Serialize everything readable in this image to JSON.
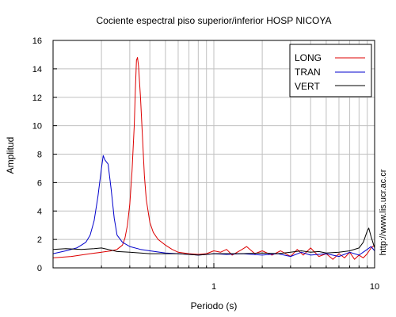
{
  "chart_data": {
    "type": "line",
    "title": "Cociente espectral piso superior/inferior  HOSP NICOYA",
    "xlabel": "Periodo (s)",
    "ylabel": "Amplitud",
    "xscale": "log",
    "xlim": [
      0.1,
      10
    ],
    "ylim": [
      0,
      16
    ],
    "xticks": [
      1,
      10
    ],
    "yticks": [
      0,
      2,
      4,
      6,
      8,
      10,
      12,
      14,
      16
    ],
    "grid": true,
    "legend_position": "top-right",
    "series": [
      {
        "name": "LONG",
        "color": "#dd0000",
        "points": [
          [
            0.1,
            0.7
          ],
          [
            0.13,
            0.8
          ],
          [
            0.17,
            1.0
          ],
          [
            0.2,
            1.1
          ],
          [
            0.23,
            1.2
          ],
          [
            0.25,
            1.3
          ],
          [
            0.27,
            1.6
          ],
          [
            0.28,
            2.1
          ],
          [
            0.29,
            3.0
          ],
          [
            0.3,
            4.5
          ],
          [
            0.31,
            6.8
          ],
          [
            0.32,
            10.0
          ],
          [
            0.325,
            12.5
          ],
          [
            0.33,
            14.6
          ],
          [
            0.335,
            14.8
          ],
          [
            0.34,
            14.2
          ],
          [
            0.35,
            12.0
          ],
          [
            0.36,
            9.2
          ],
          [
            0.37,
            6.5
          ],
          [
            0.38,
            4.8
          ],
          [
            0.4,
            3.2
          ],
          [
            0.42,
            2.5
          ],
          [
            0.45,
            2.0
          ],
          [
            0.5,
            1.6
          ],
          [
            0.55,
            1.3
          ],
          [
            0.6,
            1.1
          ],
          [
            0.7,
            1.0
          ],
          [
            0.8,
            0.95
          ],
          [
            0.9,
            1.0
          ],
          [
            1.0,
            1.2
          ],
          [
            1.1,
            1.1
          ],
          [
            1.2,
            1.3
          ],
          [
            1.3,
            0.9
          ],
          [
            1.5,
            1.3
          ],
          [
            1.6,
            1.5
          ],
          [
            1.8,
            1.0
          ],
          [
            2.0,
            1.2
          ],
          [
            2.3,
            0.9
          ],
          [
            2.6,
            1.2
          ],
          [
            3.0,
            0.8
          ],
          [
            3.3,
            1.3
          ],
          [
            3.6,
            0.9
          ],
          [
            4.0,
            1.4
          ],
          [
            4.5,
            0.8
          ],
          [
            5.0,
            1.0
          ],
          [
            5.5,
            0.6
          ],
          [
            6.0,
            1.0
          ],
          [
            6.5,
            0.7
          ],
          [
            7.0,
            1.1
          ],
          [
            7.5,
            0.6
          ],
          [
            8.0,
            0.9
          ],
          [
            8.5,
            0.7
          ],
          [
            9.0,
            1.0
          ],
          [
            9.5,
            1.4
          ],
          [
            10.0,
            1.6
          ]
        ]
      },
      {
        "name": "TRAN",
        "color": "#0000cc",
        "points": [
          [
            0.1,
            1.0
          ],
          [
            0.12,
            1.2
          ],
          [
            0.14,
            1.4
          ],
          [
            0.15,
            1.6
          ],
          [
            0.16,
            1.8
          ],
          [
            0.17,
            2.3
          ],
          [
            0.18,
            3.3
          ],
          [
            0.19,
            5.0
          ],
          [
            0.2,
            7.0
          ],
          [
            0.205,
            7.9
          ],
          [
            0.21,
            7.6
          ],
          [
            0.22,
            7.3
          ],
          [
            0.23,
            5.5
          ],
          [
            0.24,
            3.5
          ],
          [
            0.25,
            2.3
          ],
          [
            0.27,
            1.8
          ],
          [
            0.3,
            1.5
          ],
          [
            0.35,
            1.3
          ],
          [
            0.4,
            1.2
          ],
          [
            0.5,
            1.05
          ],
          [
            0.6,
            1.0
          ],
          [
            0.7,
            0.95
          ],
          [
            0.8,
            0.9
          ],
          [
            0.9,
            0.95
          ],
          [
            1.0,
            1.0
          ],
          [
            1.2,
            0.95
          ],
          [
            1.5,
            1.0
          ],
          [
            2.0,
            0.9
          ],
          [
            2.5,
            1.0
          ],
          [
            3.0,
            0.8
          ],
          [
            3.5,
            1.1
          ],
          [
            4.0,
            0.9
          ],
          [
            5.0,
            1.0
          ],
          [
            6.0,
            0.8
          ],
          [
            7.0,
            1.1
          ],
          [
            8.0,
            0.9
          ],
          [
            9.0,
            1.3
          ],
          [
            9.5,
            1.5
          ],
          [
            10.0,
            1.2
          ]
        ]
      },
      {
        "name": "VERT",
        "color": "#000000",
        "points": [
          [
            0.1,
            1.3
          ],
          [
            0.12,
            1.35
          ],
          [
            0.15,
            1.3
          ],
          [
            0.18,
            1.35
          ],
          [
            0.2,
            1.4
          ],
          [
            0.22,
            1.3
          ],
          [
            0.25,
            1.15
          ],
          [
            0.3,
            1.1
          ],
          [
            0.35,
            1.05
          ],
          [
            0.4,
            1.0
          ],
          [
            0.5,
            1.0
          ],
          [
            0.6,
            1.0
          ],
          [
            0.7,
            0.95
          ],
          [
            0.8,
            0.9
          ],
          [
            0.9,
            0.95
          ],
          [
            1.0,
            1.0
          ],
          [
            1.2,
            1.0
          ],
          [
            1.5,
            1.0
          ],
          [
            2.0,
            1.05
          ],
          [
            2.5,
            1.0
          ],
          [
            3.0,
            1.1
          ],
          [
            3.5,
            1.2
          ],
          [
            4.0,
            1.1
          ],
          [
            4.5,
            1.15
          ],
          [
            5.0,
            1.05
          ],
          [
            6.0,
            1.1
          ],
          [
            7.0,
            1.2
          ],
          [
            8.0,
            1.4
          ],
          [
            8.5,
            1.8
          ],
          [
            9.0,
            2.6
          ],
          [
            9.2,
            2.8
          ],
          [
            9.5,
            2.2
          ],
          [
            10.0,
            1.4
          ]
        ]
      }
    ]
  },
  "credit": "http://www.lis.ucr.ac.cr"
}
